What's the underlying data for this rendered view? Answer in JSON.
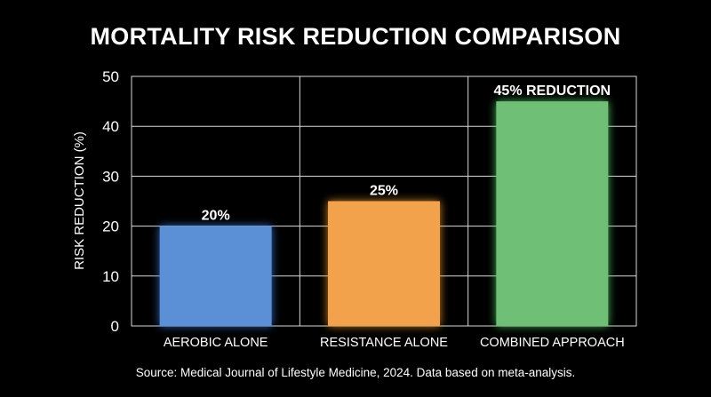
{
  "chart_data": {
    "type": "bar",
    "title": "MORTALITY RISK REDUCTION COMPARISON",
    "xlabel": "",
    "ylabel": "RISK REDUCTION (%)",
    "categories": [
      "AEROBIC ALONE",
      "RESISTANCE ALONE",
      "COMBINED APPROACH"
    ],
    "values": [
      20,
      25,
      45
    ],
    "data_labels": [
      "20%",
      "25%",
      "45% REDUCTION"
    ],
    "colors": [
      "#5b8fd6",
      "#f2a24a",
      "#6fbf77"
    ],
    "glow_colors": [
      "#3f7de0",
      "#f59a2e",
      "#57d26a"
    ],
    "ylim": [
      0,
      50
    ],
    "yticks": [
      0,
      10,
      20,
      30,
      40,
      50
    ],
    "grid": true,
    "legend": "none"
  },
  "source": "Source: Medical Journal of Lifestyle Medicine, 2024. Data based on meta-analysis."
}
